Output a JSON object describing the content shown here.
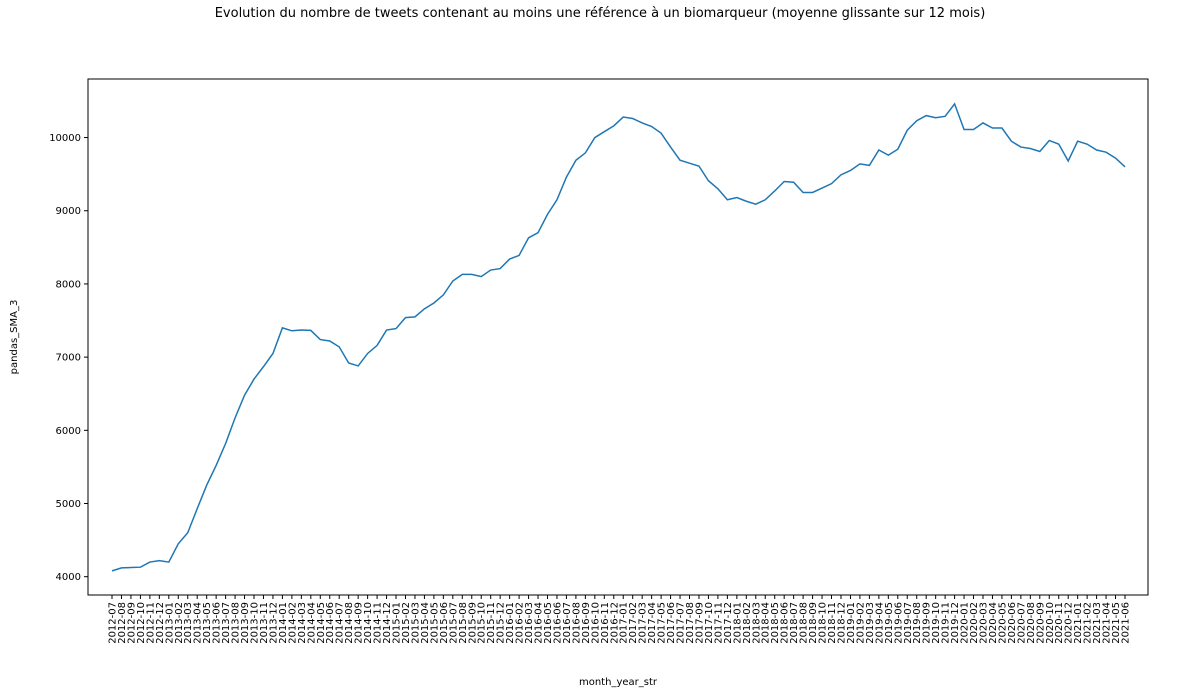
{
  "chart_data": {
    "type": "line",
    "title": "Evolution du nombre de tweets contenant au moins une référence à un biomarqueur (moyenne glissante sur 12 mois)",
    "xlabel": "month_year_str",
    "ylabel": "pandas_SMA_3",
    "ylim": [
      3750,
      10800
    ],
    "yticks": [
      4000,
      5000,
      6000,
      7000,
      8000,
      9000,
      10000
    ],
    "grid": false,
    "line_color": "#1f77b4",
    "categories": [
      "2012-07",
      "2012-08",
      "2012-09",
      "2012-10",
      "2012-11",
      "2012-12",
      "2013-01",
      "2013-02",
      "2013-03",
      "2013-04",
      "2013-05",
      "2013-06",
      "2013-07",
      "2013-08",
      "2013-09",
      "2013-10",
      "2013-11",
      "2013-12",
      "2014-01",
      "2014-02",
      "2014-03",
      "2014-04",
      "2014-05",
      "2014-06",
      "2014-07",
      "2014-08",
      "2014-09",
      "2014-10",
      "2014-11",
      "2014-12",
      "2015-01",
      "2015-02",
      "2015-03",
      "2015-04",
      "2015-05",
      "2015-06",
      "2015-07",
      "2015-08",
      "2015-09",
      "2015-10",
      "2015-11",
      "2015-12",
      "2016-01",
      "2016-02",
      "2016-03",
      "2016-04",
      "2016-05",
      "2016-06",
      "2016-07",
      "2016-08",
      "2016-09",
      "2016-10",
      "2016-11",
      "2016-12",
      "2017-01",
      "2017-02",
      "2017-03",
      "2017-04",
      "2017-05",
      "2017-06",
      "2017-07",
      "2017-08",
      "2017-09",
      "2017-10",
      "2017-11",
      "2017-12",
      "2018-01",
      "2018-02",
      "2018-03",
      "2018-04",
      "2018-05",
      "2018-06",
      "2018-07",
      "2018-08",
      "2018-09",
      "2018-10",
      "2018-11",
      "2018-12",
      "2019-01",
      "2019-02",
      "2019-03",
      "2019-04",
      "2019-05",
      "2019-06",
      "2019-07",
      "2019-08",
      "2019-09",
      "2019-10",
      "2019-11",
      "2019-12",
      "2020-01",
      "2020-02",
      "2020-03",
      "2020-04",
      "2020-05",
      "2020-06",
      "2020-07",
      "2020-08",
      "2020-09",
      "2020-10",
      "2020-11",
      "2020-12",
      "2021-01",
      "2021-02",
      "2021-03",
      "2021-04",
      "2021-05",
      "2021-06"
    ],
    "values": [
      4080,
      4120,
      4125,
      4130,
      4200,
      4220,
      4200,
      4450,
      4600,
      4930,
      5250,
      5520,
      5820,
      6170,
      6480,
      6700,
      6870,
      7050,
      7400,
      7360,
      7370,
      7365,
      7240,
      7220,
      7140,
      6920,
      6880,
      7050,
      7160,
      7370,
      7390,
      7540,
      7550,
      7660,
      7740,
      7850,
      8040,
      8130,
      8130,
      8100,
      8190,
      8210,
      8340,
      8390,
      8630,
      8700,
      8950,
      9150,
      9460,
      9690,
      9790,
      10000,
      10080,
      10160,
      10280,
      10260,
      10200,
      10150,
      10060,
      9870,
      9690,
      9650,
      9610,
      9410,
      9300,
      9150,
      9180,
      9130,
      9090,
      9150,
      9270,
      9400,
      9390,
      9250,
      9250,
      9310,
      9370,
      9490,
      9550,
      9640,
      9620,
      9830,
      9760,
      9840,
      10100,
      10230,
      10300,
      10270,
      10290,
      10460,
      10110,
      10110,
      10200,
      10130,
      10130,
      9950,
      9870,
      9850,
      9810,
      9960,
      9910,
      9680,
      9950,
      9910,
      9830,
      9800,
      9720,
      9600
    ]
  }
}
